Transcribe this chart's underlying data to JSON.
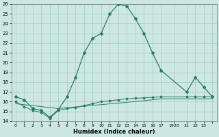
{
  "xlabel": "Humidex (Indice chaleur)",
  "background_color": "#cce8e0",
  "grid_color": "#aacfc8",
  "line_color": "#2a7a6a",
  "xlim": [
    -0.5,
    23.5
  ],
  "ylim": [
    14,
    26
  ],
  "yticks": [
    14,
    15,
    16,
    17,
    18,
    19,
    20,
    21,
    22,
    23,
    24,
    25,
    26
  ],
  "xtick_positions": [
    0,
    1,
    2,
    3,
    4,
    5,
    6,
    7,
    8,
    9,
    10,
    11,
    12,
    13,
    14,
    15,
    16,
    17,
    18.5,
    20,
    21,
    22,
    23
  ],
  "xtick_labels": [
    "0",
    "1",
    "2",
    "3",
    "4",
    "5",
    "6",
    "7",
    "8",
    "9",
    "10",
    "11",
    "12",
    "13",
    "14",
    "15",
    "16",
    "17",
    "1920",
    "21",
    "22",
    "23",
    ""
  ],
  "main_x": [
    0,
    1,
    2,
    3,
    4,
    5,
    6,
    7,
    8,
    9,
    10,
    11,
    12,
    13,
    14,
    15,
    16,
    17,
    20,
    21,
    22,
    23
  ],
  "main_y": [
    16.5,
    16.2,
    15.3,
    15.1,
    14.4,
    15.2,
    16.5,
    18.5,
    21.0,
    22.5,
    23.0,
    25.0,
    26.0,
    25.8,
    24.5,
    23.0,
    21.0,
    19.2,
    17.0,
    18.5,
    17.5,
    16.5
  ],
  "line2_x": [
    0,
    1,
    2,
    3,
    4,
    5,
    6,
    7,
    8,
    9,
    10,
    11,
    12,
    13,
    14,
    15,
    16,
    17,
    20,
    21,
    22,
    23
  ],
  "line2_y": [
    16.0,
    15.5,
    15.1,
    14.9,
    14.3,
    15.1,
    15.3,
    15.4,
    15.6,
    15.8,
    16.0,
    16.1,
    16.2,
    16.3,
    16.35,
    16.4,
    16.45,
    16.5,
    16.5,
    16.5,
    16.5,
    16.5
  ],
  "line3_x": [
    0,
    5,
    10,
    15,
    17,
    20,
    21,
    22,
    23
  ],
  "line3_y": [
    15.8,
    15.3,
    15.7,
    16.1,
    16.3,
    16.3,
    16.3,
    16.3,
    16.3
  ]
}
